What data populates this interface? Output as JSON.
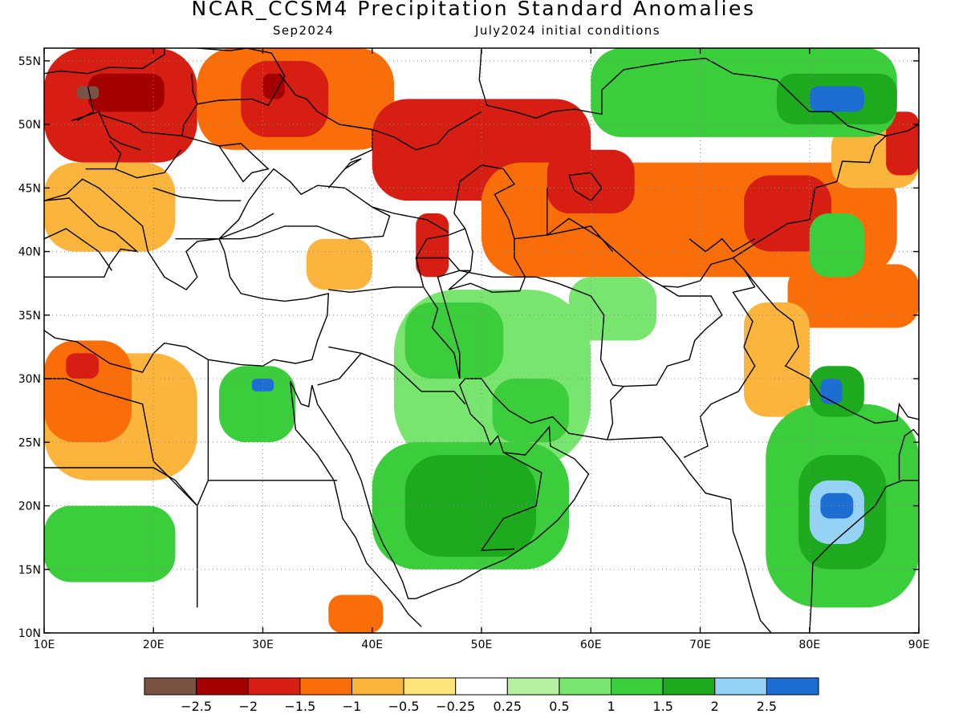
{
  "header": {
    "title": "NCAR_CCSM4 Precipitation Standard Anomalies",
    "valid_period": "Sep2024",
    "init_conditions": "July2024 initial conditions"
  },
  "map": {
    "lon_range": [
      10,
      90
    ],
    "lat_range": [
      10,
      56
    ],
    "lat_ticks": [
      {
        "value": 55,
        "label": "55N"
      },
      {
        "value": 50,
        "label": "50N"
      },
      {
        "value": 45,
        "label": "45N"
      },
      {
        "value": 40,
        "label": "40N"
      },
      {
        "value": 35,
        "label": "35N"
      },
      {
        "value": 30,
        "label": "30N"
      },
      {
        "value": 25,
        "label": "25N"
      },
      {
        "value": 20,
        "label": "20N"
      },
      {
        "value": 15,
        "label": "15N"
      },
      {
        "value": 10,
        "label": "10N"
      }
    ],
    "lon_ticks": [
      {
        "value": 10,
        "label": "10E"
      },
      {
        "value": 20,
        "label": "20E"
      },
      {
        "value": 30,
        "label": "30E"
      },
      {
        "value": 40,
        "label": "40E"
      },
      {
        "value": 50,
        "label": "50E"
      },
      {
        "value": 60,
        "label": "60E"
      },
      {
        "value": 70,
        "label": "70E"
      },
      {
        "value": 80,
        "label": "80E"
      },
      {
        "value": 90,
        "label": "90E"
      }
    ],
    "gridlines": "dotted",
    "background_color": "#ffffff"
  },
  "colorbar": {
    "colors": [
      "#7b5344",
      "#a50000",
      "#d71e12",
      "#fa6e0a",
      "#fbb43c",
      "#fde37a",
      "#ffffff",
      "#b4f0a0",
      "#78e66e",
      "#3ccd3c",
      "#1eaa1e",
      "#96d2f5",
      "#1e6ed2"
    ],
    "labels": [
      "-2.5",
      "-2",
      "-1.5",
      "-1",
      "-0.5",
      "-0.25",
      "0.25",
      "0.5",
      "1",
      "1.5",
      "2",
      "2.5"
    ]
  },
  "anomaly_regions": [
    {
      "level": -1.5,
      "lon": [
        10,
        24
      ],
      "lat": [
        47,
        56
      ]
    },
    {
      "level": -2,
      "lon": [
        14,
        21
      ],
      "lat": [
        51,
        54
      ]
    },
    {
      "level": -2.5,
      "lon": [
        13,
        15
      ],
      "lat": [
        52,
        53
      ]
    },
    {
      "level": -1,
      "lon": [
        24,
        42
      ],
      "lat": [
        48,
        56
      ]
    },
    {
      "level": -1.5,
      "lon": [
        28,
        36
      ],
      "lat": [
        49,
        55
      ]
    },
    {
      "level": -2,
      "lon": [
        30,
        32
      ],
      "lat": [
        52,
        54
      ]
    },
    {
      "level": -1.5,
      "lon": [
        40,
        60
      ],
      "lat": [
        44,
        52
      ]
    },
    {
      "level": -1.5,
      "lon": [
        44,
        47
      ],
      "lat": [
        38,
        43
      ]
    },
    {
      "level": -1,
      "lon": [
        50,
        88
      ],
      "lat": [
        38,
        47
      ]
    },
    {
      "level": -1.5,
      "lon": [
        56,
        64
      ],
      "lat": [
        43,
        48
      ]
    },
    {
      "level": -1.5,
      "lon": [
        74,
        82
      ],
      "lat": [
        40,
        46
      ]
    },
    {
      "level": -0.5,
      "lon": [
        82,
        90
      ],
      "lat": [
        45,
        50
      ]
    },
    {
      "level": -1.5,
      "lon": [
        87,
        90
      ],
      "lat": [
        46,
        51
      ]
    },
    {
      "level": -1,
      "lon": [
        78,
        90
      ],
      "lat": [
        34,
        39
      ]
    },
    {
      "level": -0.5,
      "lon": [
        74,
        80
      ],
      "lat": [
        27,
        36
      ]
    },
    {
      "level": -0.5,
      "lon": [
        10,
        24
      ],
      "lat": [
        22,
        32
      ]
    },
    {
      "level": -1,
      "lon": [
        10,
        18
      ],
      "lat": [
        25,
        33
      ]
    },
    {
      "level": -1.5,
      "lon": [
        12,
        15
      ],
      "lat": [
        30,
        32
      ]
    },
    {
      "level": -0.5,
      "lon": [
        10,
        22
      ],
      "lat": [
        40,
        47
      ]
    },
    {
      "level": -0.5,
      "lon": [
        34,
        40
      ],
      "lat": [
        37,
        41
      ]
    },
    {
      "level": -1,
      "lon": [
        36,
        41
      ],
      "lat": [
        10,
        13
      ]
    },
    {
      "level": 0.5,
      "lon": [
        42,
        60
      ],
      "lat": [
        23,
        37
      ]
    },
    {
      "level": 1,
      "lon": [
        43,
        52
      ],
      "lat": [
        30,
        36
      ]
    },
    {
      "level": 1,
      "lon": [
        40,
        58
      ],
      "lat": [
        15,
        25
      ]
    },
    {
      "level": 1.5,
      "lon": [
        43,
        55
      ],
      "lat": [
        16,
        24
      ]
    },
    {
      "level": 1,
      "lon": [
        51,
        58
      ],
      "lat": [
        25,
        30
      ]
    },
    {
      "level": 0.5,
      "lon": [
        58,
        66
      ],
      "lat": [
        33,
        38
      ]
    },
    {
      "level": 1,
      "lon": [
        76,
        90
      ],
      "lat": [
        12,
        28
      ]
    },
    {
      "level": 1.5,
      "lon": [
        79,
        87
      ],
      "lat": [
        15,
        24
      ]
    },
    {
      "level": 2,
      "lon": [
        80,
        85
      ],
      "lat": [
        17,
        22
      ]
    },
    {
      "level": 2.5,
      "lon": [
        81,
        84
      ],
      "lat": [
        19,
        21
      ]
    },
    {
      "level": 1.5,
      "lon": [
        80,
        85
      ],
      "lat": [
        27,
        31
      ]
    },
    {
      "level": 2.5,
      "lon": [
        81,
        83
      ],
      "lat": [
        28,
        30
      ]
    },
    {
      "level": 1,
      "lon": [
        60,
        88
      ],
      "lat": [
        49,
        56
      ]
    },
    {
      "level": 1.5,
      "lon": [
        77,
        88
      ],
      "lat": [
        50,
        54
      ]
    },
    {
      "level": 2.5,
      "lon": [
        80,
        85
      ],
      "lat": [
        51,
        53
      ]
    },
    {
      "level": 1,
      "lon": [
        80,
        85
      ],
      "lat": [
        38,
        43
      ]
    },
    {
      "level": 1,
      "lon": [
        10,
        22
      ],
      "lat": [
        14,
        20
      ]
    },
    {
      "level": 1,
      "lon": [
        26,
        33
      ],
      "lat": [
        25,
        31
      ]
    },
    {
      "level": 2.5,
      "lon": [
        29,
        31
      ],
      "lat": [
        29,
        30
      ]
    }
  ]
}
